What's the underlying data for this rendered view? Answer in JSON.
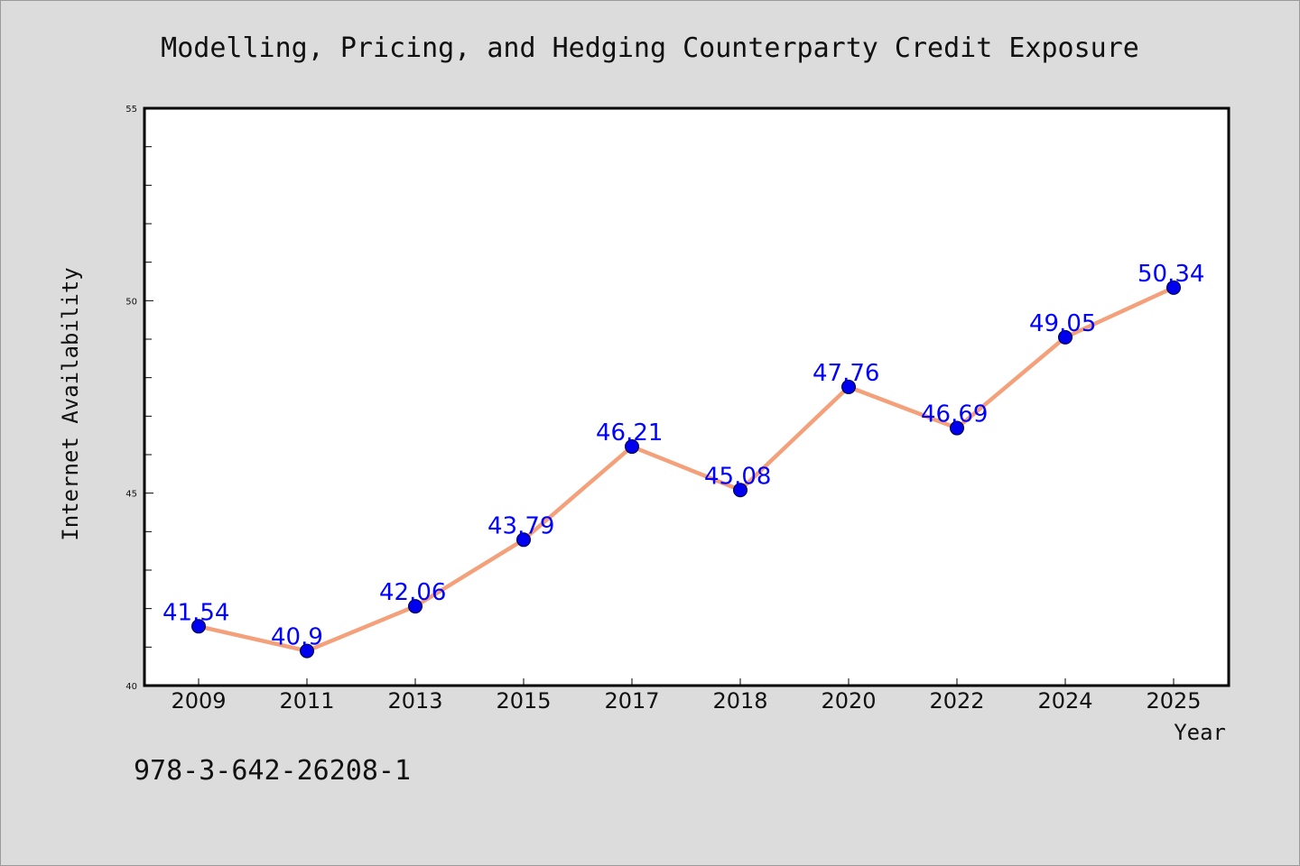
{
  "chart_data": {
    "type": "line",
    "title": "Modelling, Pricing, and Hedging Counterparty Credit Exposure",
    "xlabel": "Year",
    "ylabel": "Internet Availability",
    "categories": [
      "2009",
      "2011",
      "2013",
      "2015",
      "2017",
      "2018",
      "2020",
      "2022",
      "2024",
      "2025"
    ],
    "values": [
      41.54,
      40.9,
      42.06,
      43.79,
      46.21,
      45.08,
      47.76,
      46.69,
      49.05,
      50.34
    ],
    "data_labels": [
      "41.54",
      "40.9",
      "42.06",
      "43.79",
      "46.21",
      "45.08",
      "47.76",
      "46.69",
      "49.05",
      "50.34"
    ],
    "ylim": [
      40,
      55
    ],
    "y_major_ticks": [
      40,
      45,
      50,
      55
    ],
    "y_major_tick_labels": [
      "40",
      "45",
      "50",
      "55"
    ],
    "y_minor_step": 1,
    "grid": false,
    "legend": "none",
    "line_color": "#f4a07a",
    "marker_color": "#0000ee",
    "label_color": "#0000ff",
    "background_color": "#dcdcdc",
    "plot_background_color": "#ffffff"
  },
  "annotation": "978-3-642-26208-1"
}
